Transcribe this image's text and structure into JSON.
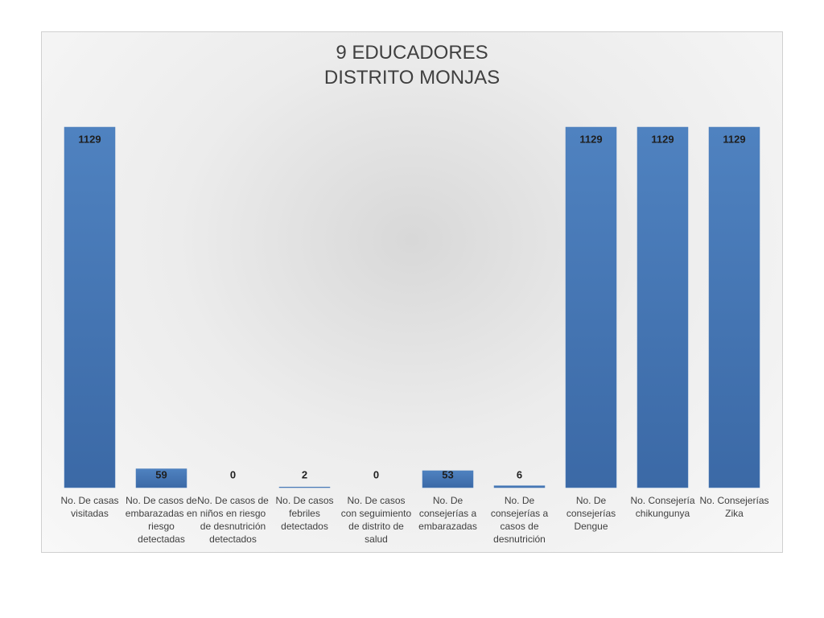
{
  "chart_data": {
    "type": "bar",
    "title": [
      "9 EDUCADORES",
      "DISTRITO MONJAS"
    ],
    "categories": [
      "No. De casas visitadas",
      "No. De casos de embarazadas en riesgo detectadas",
      "No. De casos de niños en riesgo de desnutrición detectados",
      "No. De casos febriles detectados",
      "No. De casos con seguimiento de distrito de salud",
      "No. De consejerías a embarazadas",
      "No. De consejerías a casos de desnutrición",
      "No. De consejerías Dengue",
      "No. Consejería chikungunya",
      "No. Consejerías Zika"
    ],
    "values": [
      1129,
      59,
      0,
      2,
      0,
      53,
      6,
      1129,
      1129,
      1129
    ],
    "color": "#4a7cba"
  }
}
